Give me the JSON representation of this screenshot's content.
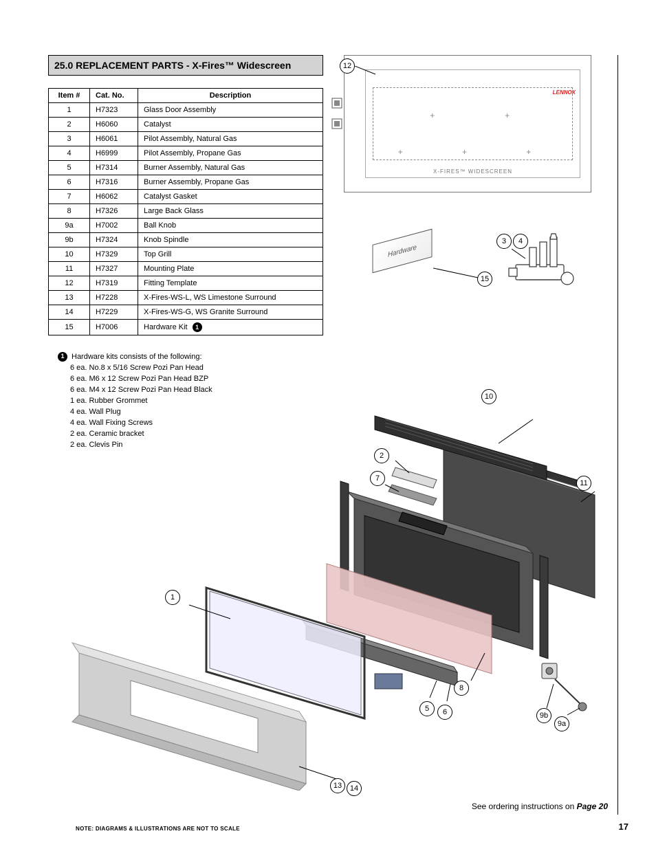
{
  "section_title": "25.0 REPLACEMENT PARTS - X-Fires™ Widescreen",
  "table": {
    "headers": [
      "Item #",
      "Cat. No.",
      "Description"
    ],
    "rows": [
      [
        "1",
        "H7323",
        "Glass Door Assembly"
      ],
      [
        "2",
        "H6060",
        "Catalyst"
      ],
      [
        "3",
        "H6061",
        "Pilot Assembly, Natural Gas"
      ],
      [
        "4",
        "H6999",
        "Pilot Assembly, Propane Gas"
      ],
      [
        "5",
        "H7314",
        "Burner Assembly, Natural Gas"
      ],
      [
        "6",
        "H7316",
        "Burner Assembly, Propane Gas"
      ],
      [
        "7",
        "H6062",
        "Catalyst Gasket"
      ],
      [
        "8",
        "H7326",
        "Large Back Glass"
      ],
      [
        "9a",
        "H7002",
        "Ball Knob"
      ],
      [
        "9b",
        "H7324",
        "Knob Spindle"
      ],
      [
        "10",
        "H7329",
        "Top Grill"
      ],
      [
        "11",
        "H7327",
        "Mounting Plate"
      ],
      [
        "12",
        "H7319",
        "Fitting Template"
      ],
      [
        "13",
        "H7228",
        "X-Fires-WS-L, WS Limestone Surround"
      ],
      [
        "14",
        "H7229",
        "X-Fires-WS-G, WS Granite Surround"
      ],
      [
        "15",
        "H7006",
        "Hardware Kit"
      ]
    ],
    "last_row_has_marker": true
  },
  "hardware_note": {
    "lead": "Hardware kits consists of the following:",
    "items": [
      "6 ea. No.8 x 5/16 Screw Pozi Pan Head",
      "6 ea. M6 x 12 Screw Pozi Pan Head BZP",
      "6 ea. M4 x 12 Screw Pozi Pan Head Black",
      "1 ea. Rubber Grommet",
      "4 ea. Wall Plug",
      "4 ea. Wall Fixing Screws",
      "2 ea. Ceramic bracket",
      "2 ea. Clevis Pin"
    ]
  },
  "template": {
    "label": "X-FIRES™ WIDESCREEN",
    "logo": "LENNOX"
  },
  "hardware_label": "Hardware",
  "callouts": {
    "c12": "12",
    "c3": "3",
    "c4": "4",
    "c15": "15",
    "c10": "10",
    "c2": "2",
    "c7": "7",
    "c11": "11",
    "c1": "1",
    "c8": "8",
    "c5": "5",
    "c6": "6",
    "c9b": "9b",
    "c9a": "9a",
    "c13": "13",
    "c14": "14"
  },
  "order_note_text": "See ordering instructions on ",
  "order_note_page": "Page 20",
  "footer_note": "NOTE: DIAGRAMS & ILLUSTRATIONS ARE NOT TO SCALE",
  "page_number": "17",
  "colors": {
    "header_bg": "#d3d3d3",
    "glass_tint": "#e9c6c6",
    "metal_dark": "#4a4a4a",
    "metal_mid": "#6a6a6a",
    "surround": "#c8c8c8",
    "line": "#000000"
  }
}
